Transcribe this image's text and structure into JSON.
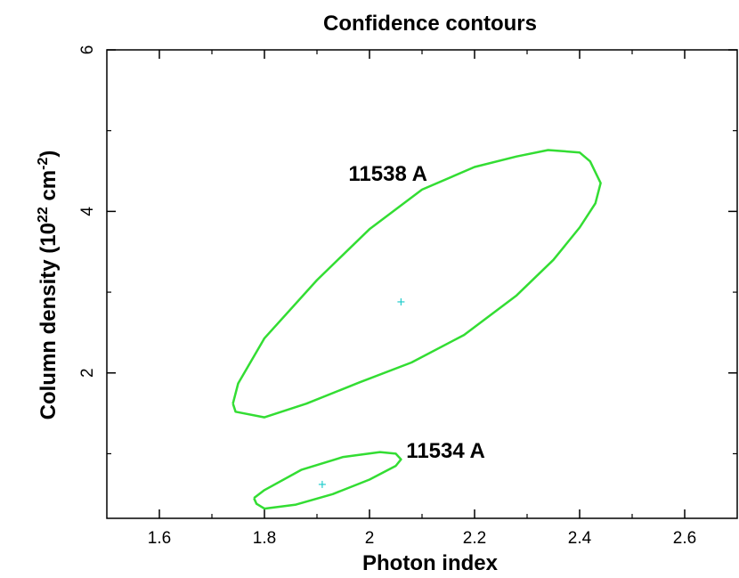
{
  "chart_data": {
    "type": "line",
    "title": "Confidence contours",
    "xlabel": "Photon index",
    "ylabel_main": "Column density (10",
    "ylabel_sup1": "22",
    "ylabel_mid": " cm",
    "ylabel_sup2": "-2",
    "ylabel_end": ")",
    "xlim": [
      1.5,
      2.7
    ],
    "ylim": [
      0.2,
      6.0
    ],
    "xticks": [
      1.6,
      1.8,
      2.0,
      2.2,
      2.4,
      2.6
    ],
    "xtick_labels": [
      "1.6",
      "1.8",
      "2",
      "2.2",
      "2.4",
      "2.6"
    ],
    "yticks_major": [
      2,
      4,
      6
    ],
    "ytick_labels": [
      "2",
      "4",
      "6"
    ],
    "yticks_minor": [
      1,
      3,
      5
    ],
    "xticks_minor": [
      1.7,
      1.9,
      2.1,
      2.3,
      2.5
    ],
    "colors": {
      "contour": "#33dd33",
      "marker": "#22cccc",
      "axes": "#000000"
    },
    "series": [
      {
        "name": "11538 A",
        "best_fit": [
          2.06,
          2.88
        ],
        "label_pos": [
          1.96,
          4.38
        ],
        "x": [
          1.74,
          1.75,
          1.8,
          1.9,
          2.0,
          2.1,
          2.2,
          2.28,
          2.34,
          2.4,
          2.42,
          2.44,
          2.43,
          2.4,
          2.35,
          2.28,
          2.18,
          2.08,
          1.98,
          1.88,
          1.8,
          1.745,
          1.74
        ],
        "y": [
          1.62,
          1.87,
          2.43,
          3.15,
          3.78,
          4.27,
          4.55,
          4.68,
          4.76,
          4.73,
          4.62,
          4.35,
          4.1,
          3.8,
          3.4,
          2.96,
          2.47,
          2.13,
          1.88,
          1.62,
          1.45,
          1.52,
          1.62
        ]
      },
      {
        "name": "11534 A",
        "best_fit": [
          1.91,
          0.62
        ],
        "label_pos": [
          2.07,
          0.95
        ],
        "x": [
          1.78,
          1.8,
          1.87,
          1.95,
          2.02,
          2.05,
          2.06,
          2.05,
          2.0,
          1.93,
          1.86,
          1.8,
          1.785,
          1.78
        ],
        "y": [
          0.45,
          0.55,
          0.8,
          0.96,
          1.02,
          1.0,
          0.93,
          0.85,
          0.68,
          0.5,
          0.37,
          0.32,
          0.38,
          0.45
        ]
      }
    ]
  }
}
